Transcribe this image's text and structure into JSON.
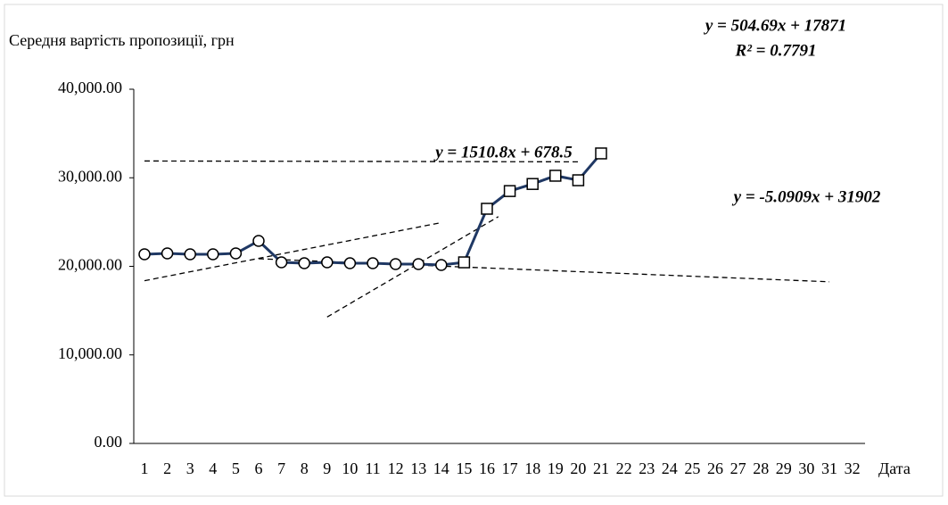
{
  "chart_data": {
    "type": "line",
    "y_label": "Середня вартість пропозиції, грн",
    "x_label": "Дата",
    "categories": [
      "1",
      "2",
      "3",
      "4",
      "5",
      "6",
      "7",
      "8",
      "9",
      "10",
      "11",
      "12",
      "13",
      "14",
      "15",
      "16",
      "17",
      "18",
      "19",
      "20",
      "21",
      "22",
      "23",
      "24",
      "25",
      "26",
      "27",
      "28",
      "29",
      "30",
      "31",
      "32"
    ],
    "series": [
      {
        "color": "#1f3864",
        "values": [
          21360,
          21460,
          21360,
          21360,
          21460,
          22870,
          20450,
          20350,
          20450,
          20350,
          20350,
          20250,
          20250,
          20150,
          20450,
          26500,
          28500,
          29300,
          30230,
          29720,
          32750,
          null,
          null,
          null,
          null,
          null,
          null,
          null,
          null,
          null,
          null,
          null
        ],
        "markers": [
          "circle",
          "circle",
          "circle",
          "circle",
          "circle",
          "circle",
          "circle",
          "circle",
          "circle",
          "circle",
          "circle",
          "circle",
          "circle",
          "circle",
          "square",
          "square",
          "square",
          "square",
          "square",
          "square",
          "square",
          null,
          null,
          null,
          null,
          null,
          null,
          null,
          null,
          null,
          null,
          null
        ]
      }
    ],
    "trendlines": [
      {
        "slope": 504.69,
        "intercept": 17871,
        "x_range": [
          1,
          14
        ],
        "label": "y = 504.69x + 17871",
        "r2_label": "R² = 0.7791"
      },
      {
        "slope": 1510.8,
        "intercept": 678.5,
        "x_range": [
          9,
          16.5
        ],
        "label": "y = 1510.8x + 678.5"
      },
      {
        "slope": -5.0909,
        "intercept": 31902,
        "x_range": [
          1,
          20
        ],
        "label": "y = -5.0909x + 31902"
      },
      {
        "slope": -104,
        "intercept": 21480,
        "x_range": [
          6,
          31
        ]
      }
    ],
    "ylim": [
      0,
      40000
    ],
    "yticks": [
      {
        "value": 0,
        "label": "0.00"
      },
      {
        "value": 10000,
        "label": "10,000.00"
      },
      {
        "value": 20000,
        "label": "20,000.00"
      },
      {
        "value": 30000,
        "label": "30,000.00"
      },
      {
        "value": 40000,
        "label": "40,000.00"
      }
    ],
    "grid": false
  }
}
